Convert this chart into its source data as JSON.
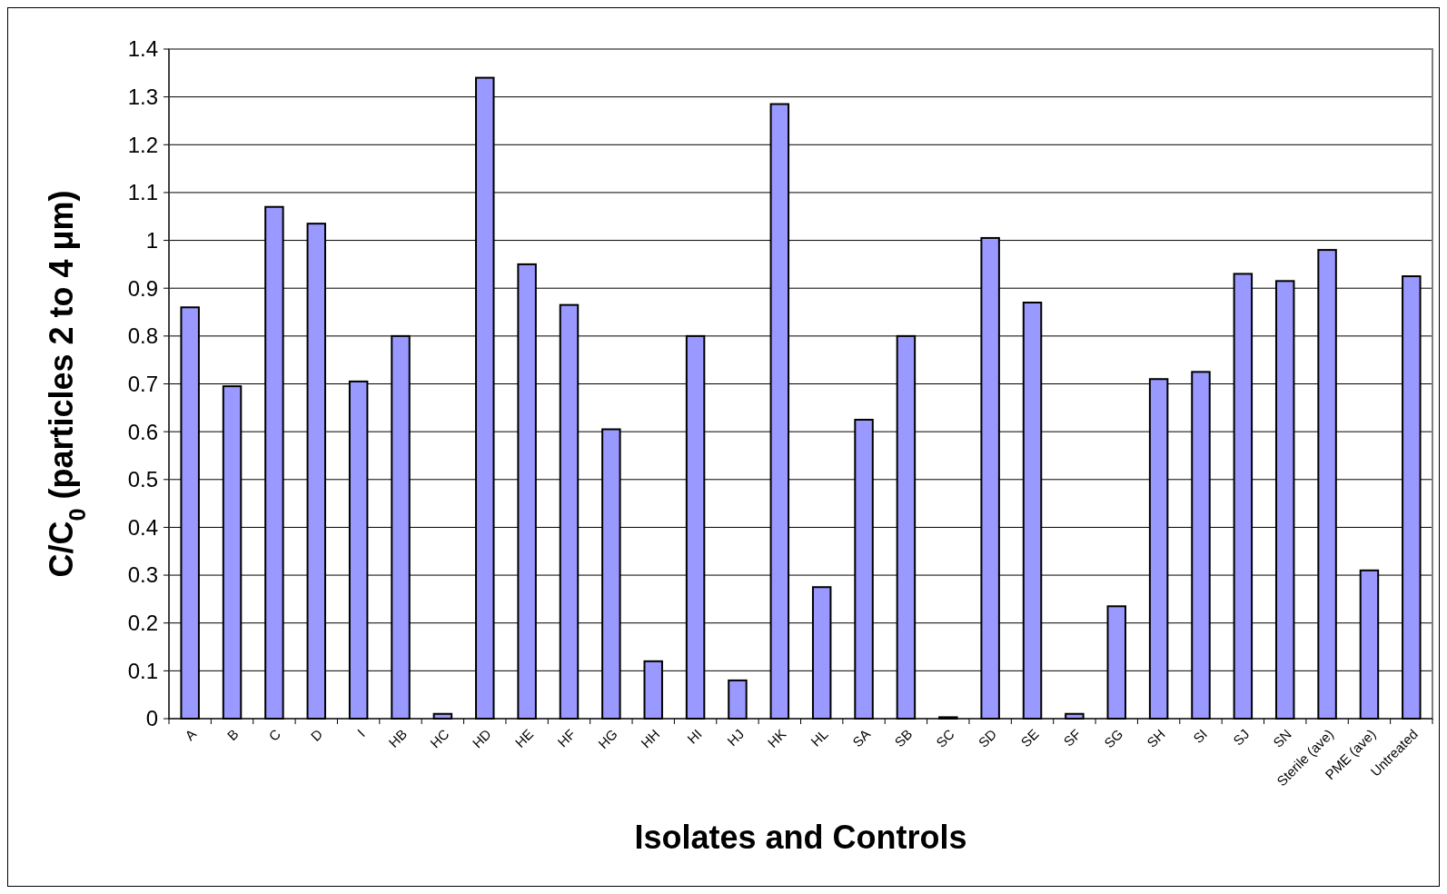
{
  "chart_data": {
    "type": "bar",
    "xlabel": "Isolates and Controls",
    "ylabel": "C/C$_{0}$ (particles 2 to 4 μm)",
    "categories": [
      "A",
      "B",
      "C",
      "D",
      "I",
      "HB",
      "HC",
      "HD",
      "HE",
      "HF",
      "HG",
      "HH",
      "HI",
      "HJ",
      "HK",
      "HL",
      "SA",
      "SB",
      "SC",
      "SD",
      "SE",
      "SF",
      "SG",
      "SH",
      "SI",
      "SJ",
      "SN",
      "Sterile (ave)",
      "PME (ave)",
      "Untreated"
    ],
    "values": [
      0.86,
      0.695,
      1.07,
      1.035,
      0.705,
      0.8,
      0.01,
      1.34,
      0.95,
      0.865,
      0.605,
      0.12,
      0.8,
      0.08,
      1.285,
      0.275,
      0.625,
      0.8,
      0.003,
      1.005,
      0.87,
      0.01,
      0.235,
      0.71,
      0.725,
      0.93,
      0.915,
      0.98,
      0.31,
      0.925
    ],
    "color": "#9999ff",
    "ylim": [
      0,
      1.4
    ],
    "yticks": [
      0,
      0.1,
      0.2,
      0.3,
      0.4,
      0.5,
      0.6,
      0.7,
      0.8,
      0.9,
      1,
      1.1,
      1.2,
      1.3,
      1.4
    ],
    "grid": "y"
  }
}
